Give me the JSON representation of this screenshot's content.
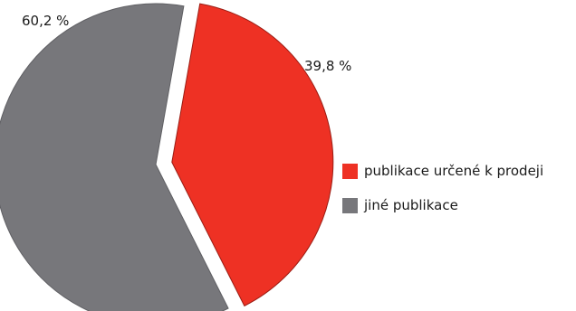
{
  "chart_data": {
    "type": "pie",
    "title": "",
    "categories": [
      "publikace určené k prodeji",
      "jiné publikace"
    ],
    "values": [
      39.8,
      60.2
    ],
    "value_labels": [
      "39,8 %",
      "60,2 %"
    ],
    "colors": [
      "#ee3124",
      "#77777b"
    ],
    "exploded": true,
    "legend_position": "right"
  }
}
